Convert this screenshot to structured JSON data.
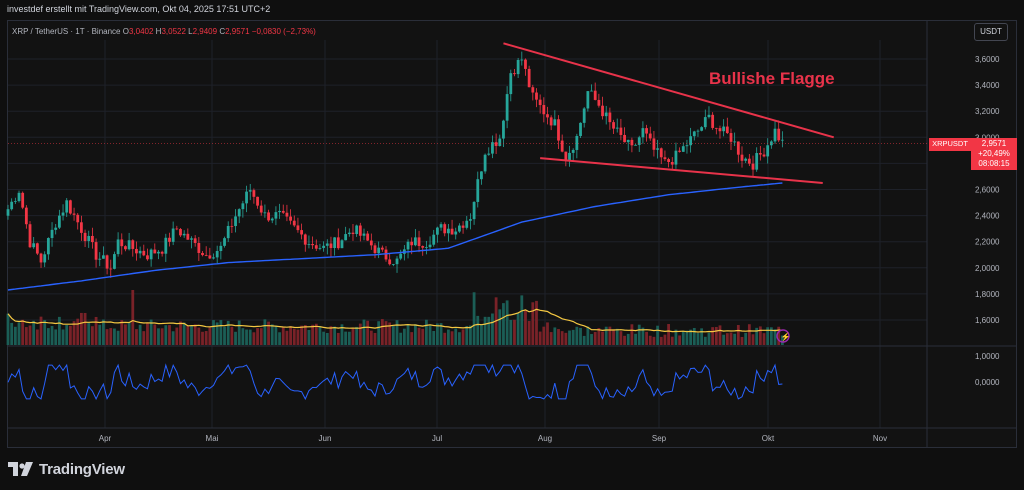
{
  "header": {
    "meta": "investdef erstellt mit TradingView.com, Okt 04, 2025 17:51 UTC+2"
  },
  "legend": {
    "symbol": "XRP / TetherUS · 1T · Binance",
    "o_label": "O",
    "o": "3,0402",
    "h_label": "H",
    "h": "3,0522",
    "l_label": "L",
    "l": "2,9409",
    "c_label": "C",
    "c": "2,9571",
    "change": "−0,0830 (−2,73%)"
  },
  "currency": "USDT",
  "price_tag": {
    "ticker": "XRPUSDT",
    "price": "2,9571",
    "change": "+20,49%",
    "timer": "08:08:15"
  },
  "annotation": "Bullishe Flagge",
  "footer": {
    "brand": "TradingView"
  },
  "colors": {
    "up": "#26a69a",
    "down": "#f23645",
    "ma_blue": "#2962ff",
    "ma_yellow": "#f5c842",
    "osc": "#2962ff",
    "trendline": "#e8334a",
    "annotation": "#e8334a"
  },
  "chart_data": {
    "type": "candlestick",
    "ylim": [
      1.6,
      3.7
    ],
    "y_ticks": [
      "3,6000",
      "3,4000",
      "3,2000",
      "3,0000",
      "2,8000",
      "2,6000",
      "2,4000",
      "2,2000",
      "2,0000",
      "1,8000",
      "1,6000"
    ],
    "x_ticks": [
      "Apr",
      "Mai",
      "Jun",
      "Jul",
      "Aug",
      "Sep",
      "Okt",
      "Nov"
    ],
    "close_keypoints": [
      [
        0,
        2.45
      ],
      [
        3,
        2.6
      ],
      [
        6,
        2.2
      ],
      [
        9,
        2.05
      ],
      [
        13,
        2.35
      ],
      [
        16,
        2.5
      ],
      [
        20,
        2.3
      ],
      [
        24,
        2.1
      ],
      [
        28,
        2.0
      ],
      [
        30,
        2.2
      ],
      [
        34,
        2.15
      ],
      [
        38,
        2.1
      ],
      [
        42,
        2.15
      ],
      [
        46,
        2.3
      ],
      [
        50,
        2.2
      ],
      [
        54,
        2.1
      ],
      [
        58,
        2.15
      ],
      [
        62,
        2.4
      ],
      [
        66,
        2.6
      ],
      [
        70,
        2.4
      ],
      [
        74,
        2.4
      ],
      [
        78,
        2.3
      ],
      [
        82,
        2.2
      ],
      [
        86,
        2.15
      ],
      [
        90,
        2.2
      ],
      [
        94,
        2.3
      ],
      [
        98,
        2.2
      ],
      [
        102,
        2.1
      ],
      [
        106,
        2.05
      ],
      [
        110,
        2.2
      ],
      [
        114,
        2.2
      ],
      [
        118,
        2.3
      ],
      [
        122,
        2.3
      ],
      [
        126,
        2.4
      ],
      [
        130,
        2.9
      ],
      [
        134,
        3.0
      ],
      [
        137,
        3.5
      ],
      [
        140,
        3.6
      ],
      [
        143,
        3.3
      ],
      [
        146,
        3.2
      ],
      [
        149,
        3.1
      ],
      [
        152,
        2.85
      ],
      [
        155,
        3.0
      ],
      [
        158,
        3.35
      ],
      [
        161,
        3.25
      ],
      [
        164,
        3.1
      ],
      [
        167,
        3.0
      ],
      [
        170,
        2.9
      ],
      [
        173,
        3.05
      ],
      [
        176,
        2.9
      ],
      [
        179,
        2.8
      ],
      [
        182,
        2.85
      ],
      [
        185,
        2.95
      ],
      [
        188,
        3.05
      ],
      [
        191,
        3.15
      ],
      [
        194,
        3.05
      ],
      [
        197,
        3.0
      ],
      [
        200,
        2.85
      ],
      [
        203,
        2.8
      ],
      [
        206,
        2.9
      ],
      [
        209,
        3.05
      ],
      [
        211,
        2.957
      ]
    ],
    "ma_blue_keypoints": [
      [
        0,
        1.83
      ],
      [
        20,
        1.9
      ],
      [
        40,
        1.98
      ],
      [
        60,
        2.04
      ],
      [
        80,
        2.07
      ],
      [
        100,
        2.1
      ],
      [
        120,
        2.15
      ],
      [
        140,
        2.35
      ],
      [
        160,
        2.47
      ],
      [
        180,
        2.56
      ],
      [
        200,
        2.62
      ],
      [
        211,
        2.65
      ]
    ],
    "trendlines": [
      {
        "name": "upper",
        "from": [
          135,
          3.72
        ],
        "to": [
          225,
          3.0
        ]
      },
      {
        "name": "lower",
        "from": [
          145,
          2.84
        ],
        "to": [
          222,
          2.65
        ]
      }
    ],
    "oscillator": {
      "ticks": [
        "1,0000",
        "0,0000"
      ],
      "ylim": [
        -1.4,
        1.4
      ]
    }
  }
}
